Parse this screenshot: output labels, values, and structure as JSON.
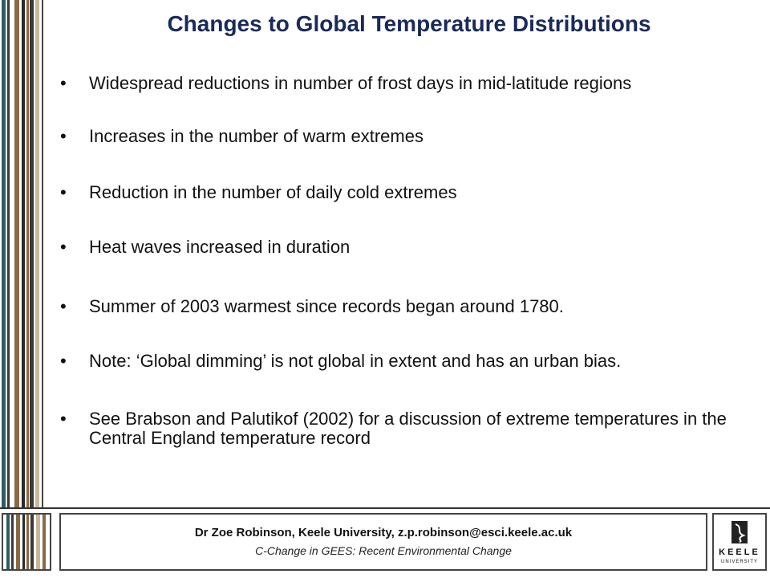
{
  "slide": {
    "title": "Changes to Global Temperature Distributions",
    "bullets": [
      "Widespread reductions in number of frost days in mid-latitude regions",
      "Increases in the number of warm extremes",
      "Reduction in the number of daily cold extremes",
      "Heat waves increased in duration",
      "Summer of 2003 warmest since records began around 1780.",
      "Note: ‘Global dimming’ is not global in extent and has an urban bias.",
      "See Brabson and Palutikof (2002) for a discussion of extreme temperatures in the Central England temperature record"
    ],
    "bullet_symbol": "•"
  },
  "footer": {
    "author_line": "Dr Zoe Robinson, Keele University, z.p.robinson@esci.keele.ac.uk",
    "course_line": "C-Change in GEES: Recent Environmental Change",
    "logo_text": "KEELE",
    "logo_subtext": "UNIVERSITY"
  },
  "colors": {
    "title": "#1a2a5a",
    "stripe_brown": "#8a6a45",
    "stripe_teal": "#2f5d62",
    "stripe_dark": "#3a3a3a"
  }
}
